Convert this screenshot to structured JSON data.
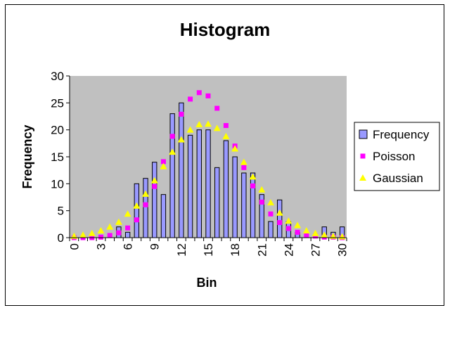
{
  "chart_data": {
    "type": "bar",
    "title": "Histogram",
    "xlabel": "Bin",
    "ylabel": "Frequency",
    "ylim": [
      0,
      30
    ],
    "yticks": [
      0,
      5,
      10,
      15,
      20,
      25,
      30
    ],
    "xticks": [
      0,
      3,
      6,
      9,
      12,
      15,
      18,
      21,
      24,
      27,
      30
    ],
    "x": [
      0,
      1,
      2,
      3,
      4,
      5,
      6,
      7,
      8,
      9,
      10,
      11,
      12,
      13,
      14,
      15,
      16,
      17,
      18,
      19,
      20,
      21,
      22,
      23,
      24,
      25,
      26,
      27,
      28,
      29,
      30
    ],
    "plot_background": "#c0c0c0",
    "grid": false,
    "legend_position": "right",
    "series": [
      {
        "name": "Frequency",
        "kind": "bar",
        "color": "#9999ff",
        "values": [
          0,
          0,
          0,
          0,
          0,
          2,
          1,
          10,
          11,
          14,
          8,
          23,
          25,
          19,
          20,
          20,
          13,
          18,
          15,
          12,
          12,
          8,
          3,
          7,
          3,
          1,
          0,
          0,
          2,
          1,
          2
        ]
      },
      {
        "name": "Poisson",
        "kind": "marker",
        "marker": "square",
        "color": "#ff00ff",
        "values": [
          0.0,
          0.0,
          0.0,
          0.1,
          0.4,
          0.9,
          1.8,
          3.3,
          6.1,
          9.5,
          14.1,
          18.8,
          22.9,
          25.7,
          26.9,
          26.3,
          24.0,
          20.8,
          17.0,
          13.0,
          9.6,
          6.6,
          4.4,
          2.8,
          1.7,
          1.0,
          0.5,
          0.3,
          0.1,
          0.1,
          0.0
        ]
      },
      {
        "name": "Gaussian",
        "kind": "marker",
        "marker": "triangle",
        "color": "#ffff00",
        "values": [
          0.3,
          0.5,
          0.8,
          1.3,
          2.0,
          2.9,
          4.4,
          5.9,
          8.1,
          10.6,
          13.2,
          15.9,
          18.2,
          20.0,
          21.0,
          21.1,
          20.3,
          18.8,
          16.5,
          14.0,
          11.3,
          8.9,
          6.5,
          4.6,
          3.1,
          2.3,
          1.3,
          0.8,
          0.5,
          0.3,
          0.2
        ]
      }
    ]
  }
}
